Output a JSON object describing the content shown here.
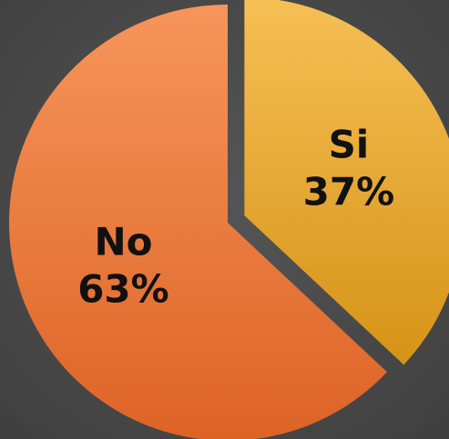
{
  "chart_data": {
    "type": "pie",
    "title": "",
    "categories": [
      "Si",
      "No"
    ],
    "values": [
      37,
      63
    ],
    "value_labels": [
      "37%",
      "63%"
    ],
    "exploded": [
      "Si"
    ],
    "colors": {
      "Si": {
        "light": "#f6bf55",
        "dark": "#d69316"
      },
      "No": {
        "light": "#f7955b",
        "dark": "#dd6325"
      }
    },
    "legend": "none",
    "start_angle_deg": 0,
    "direction": "clockwise"
  }
}
